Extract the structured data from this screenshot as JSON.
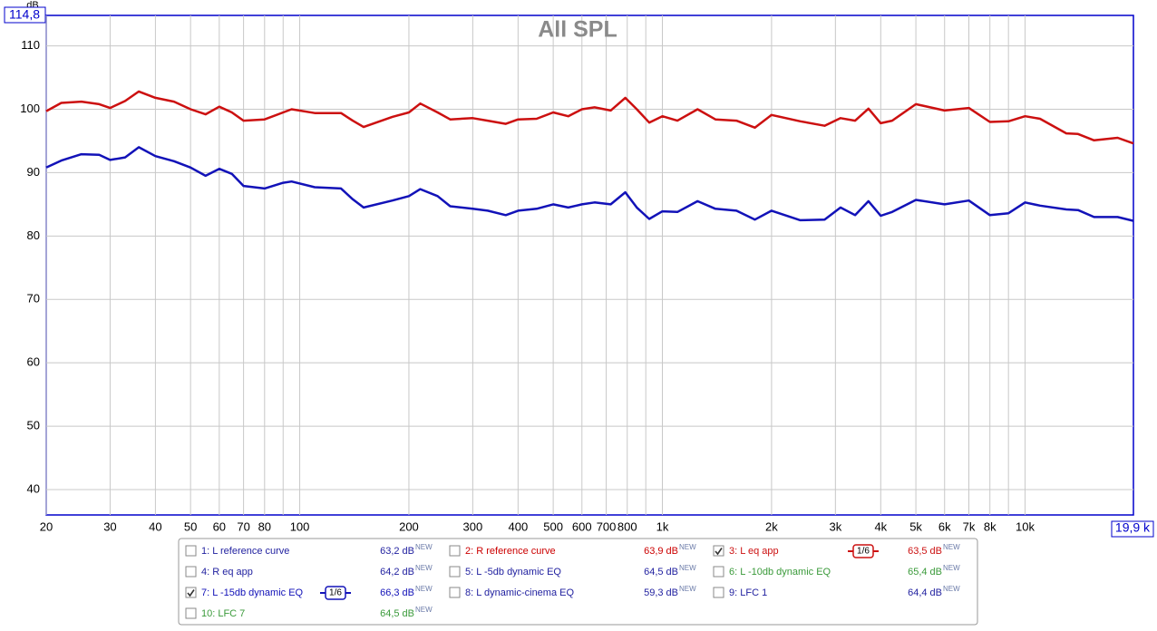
{
  "chart_data": {
    "type": "line",
    "title": "All SPL",
    "y_label": "dB",
    "xscale": "log",
    "grid": true,
    "xlim": [
      20,
      19900
    ],
    "ylim": [
      36,
      114.8
    ],
    "xticks": [
      20,
      30,
      40,
      50,
      60,
      70,
      80,
      100,
      200,
      300,
      400,
      500,
      600,
      700,
      800,
      {
        "value": 1000,
        "label": "1k"
      },
      {
        "value": 2000,
        "label": "2k"
      },
      {
        "value": 3000,
        "label": "3k"
      },
      {
        "value": 4000,
        "label": "4k"
      },
      {
        "value": 5000,
        "label": "5k"
      },
      {
        "value": 6000,
        "label": "6k"
      },
      {
        "value": 7000,
        "label": "7k"
      },
      {
        "value": 8000,
        "label": "8k"
      },
      {
        "value": 10000,
        "label": "10k"
      },
      {
        "value": 19900,
        "label": "19,9 k"
      }
    ],
    "xgrid_minor": [
      90,
      900,
      9000
    ],
    "yticks": [
      40,
      50,
      60,
      70,
      80,
      90,
      100,
      110,
      {
        "value": 114.8,
        "label": "114,8"
      }
    ],
    "new_badge": "NEW",
    "x": [
      20,
      22,
      25,
      28,
      30,
      33,
      36,
      40,
      45,
      50,
      55,
      60,
      65,
      70,
      80,
      90,
      95,
      110,
      130,
      140,
      150,
      180,
      200,
      215,
      240,
      260,
      300,
      330,
      370,
      400,
      450,
      500,
      550,
      600,
      650,
      720,
      790,
      850,
      920,
      1000,
      1100,
      1250,
      1400,
      1600,
      1800,
      2000,
      2400,
      2800,
      3100,
      3400,
      3700,
      4000,
      4300,
      5000,
      6000,
      7000,
      8000,
      9000,
      10000,
      11000,
      13000,
      14000,
      15500,
      18000,
      19900
    ],
    "series": [
      {
        "name": "1: L reference curve",
        "level": "63,2 dB",
        "color": "#1f1f9f",
        "checked": false
      },
      {
        "name": "2: R reference curve",
        "level": "63,9 dB",
        "color": "#cc0000",
        "checked": false
      },
      {
        "name": "3: L eq app",
        "level": "63,5 dB",
        "color": "#cc1010",
        "checked": true,
        "smoothing": "1/6",
        "values": [
          99.7,
          101.0,
          101.2,
          100.8,
          100.2,
          101.3,
          102.8,
          101.8,
          101.2,
          100.0,
          99.2,
          100.4,
          99.5,
          98.2,
          98.4,
          99.5,
          100.0,
          99.4,
          99.4,
          98.2,
          97.2,
          98.8,
          99.5,
          100.9,
          99.5,
          98.4,
          98.6,
          98.2,
          97.7,
          98.4,
          98.5,
          99.5,
          98.9,
          100.0,
          100.3,
          99.8,
          101.8,
          100.0,
          97.9,
          98.9,
          98.2,
          100.0,
          98.4,
          98.2,
          97.1,
          99.1,
          98.1,
          97.4,
          98.6,
          98.2,
          100.1,
          97.8,
          98.2,
          100.8,
          99.8,
          100.2,
          98.0,
          98.1,
          98.9,
          98.5,
          96.2,
          96.1,
          95.1,
          95.5,
          94.6
        ]
      },
      {
        "name": "4: R eq app",
        "level": "64,2 dB",
        "color": "#1f1f9f",
        "checked": false
      },
      {
        "name": "5: L -5db dynamic EQ",
        "level": "64,5 dB",
        "color": "#1f1f9f",
        "checked": false
      },
      {
        "name": "6: L -10db dynamic EQ",
        "level": "65,4 dB",
        "color": "#3a9a3a",
        "checked": false
      },
      {
        "name": "7: L -15db dynamic EQ",
        "level": "66,3 dB",
        "color": "#1212b8",
        "checked": true,
        "smoothing": "1/6",
        "values": [
          90.8,
          91.9,
          92.9,
          92.8,
          92.0,
          92.4,
          94.0,
          92.6,
          91.8,
          90.8,
          89.5,
          90.6,
          89.8,
          87.9,
          87.5,
          88.4,
          88.6,
          87.7,
          87.5,
          85.8,
          84.5,
          85.6,
          86.3,
          87.4,
          86.3,
          84.7,
          84.3,
          84.0,
          83.3,
          84.0,
          84.3,
          85.0,
          84.5,
          85.0,
          85.3,
          85.0,
          86.9,
          84.5,
          82.7,
          83.9,
          83.8,
          85.5,
          84.3,
          84.0,
          82.6,
          84.0,
          82.5,
          82.6,
          84.5,
          83.3,
          85.5,
          83.2,
          83.8,
          85.7,
          85.0,
          85.6,
          83.3,
          83.6,
          85.3,
          84.8,
          84.2,
          84.1,
          83.0,
          83.0,
          82.4
        ]
      },
      {
        "name": "8: L dynamic-cinema EQ",
        "level": "59,3 dB",
        "color": "#1f1f9f",
        "checked": false
      },
      {
        "name": "9: LFC 1",
        "level": "64,4 dB",
        "color": "#1f1f9f",
        "checked": false
      },
      {
        "name": "10: LFC 7",
        "level": "64,5 dB",
        "color": "#3a9a3a",
        "checked": false
      }
    ]
  }
}
